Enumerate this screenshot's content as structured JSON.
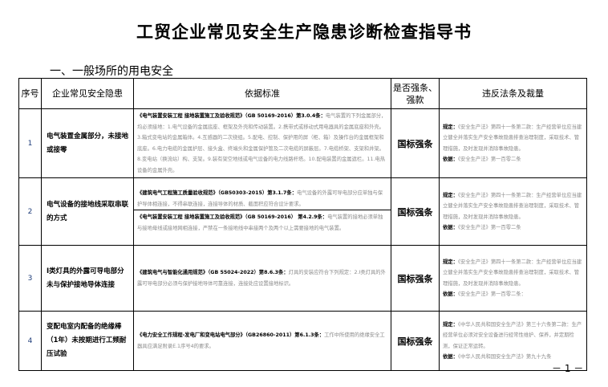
{
  "title": "工贸企业常见安全生产隐患诊断检查指导书",
  "section": "一、一般场所的用电安全",
  "headers": {
    "seq": "序号",
    "hazard": "企业常见安全隐患",
    "basis": "依据标准",
    "strong": "是否强条、强款",
    "law": "违反法条及裁量"
  },
  "rows": [
    {
      "seq": "1",
      "hazard": "电气装置金属部分，未接地或接零",
      "basis": [
        {
          "ref": "《电气装置安装工程 接地装置施工及验收规范》（GB 50169-2016）第3.0.4条：",
          "text": "电气装置的下列金属部分，均必须接地：1.电气设备的金属底座、框架及外壳和传动装置。2.携带式或移动式用电器具的金属底座和外壳。3.箱式变电站的金属箱体。4.互感器的二次绕组。5.配电、控制、保护用的屏（柜、箱）及操作台的金属框架和底座。6.电力电缆的金属护层、接头盒、终端头和金属保护管及二次电缆的屏蔽层。7.电缆桥架、支架和井架。8.变电站（换流站）构、支架。9.装有架空地线或电气设备的电力线路杆塔。10.配电装置的金属遮栏。11.电热设备的金属外壳。"
        }
      ],
      "strong": "国标强条",
      "law": {
        "rule_label": "规定：",
        "rule": "《安全生产法》第四十一条第二款：生产经营单位应当建立健全并落实生产安全事故隐患排查治理制度，采取技术、管理措施，及时发现并消除事故隐患。",
        "basis_label": "依据：",
        "basis": "《安全生产法》第一百零二条"
      }
    },
    {
      "seq": "2",
      "hazard": "电气设备的接地线采取串联的方式",
      "basis": [
        {
          "ref": "《建筑电气工程施工质量验收规范》（GB50303-2015）第3.1.7条：",
          "text": "电气设备的外露可导电部分应单独与保护导体相连接，不得串联连接，连接导体的材质、截面积应符合设计要求。"
        },
        {
          "ref": "《电气装置安装工程 接地装置施工及验收规范》（GB 50169-2016） 第4.2.9条：",
          "text": "电气装置的接地必须单独与接地母线或接地网相连接，严禁在一条接地线中串接两个及两个以上需要接地的电气装置。"
        }
      ],
      "strong": "国标强条",
      "law": {
        "rule_label": "规定：",
        "rule": "《安全生产法》第四十一条第二款：生产经营单位应当建立健全并落实生产安全事故隐患排查治理制度，采取技术、管理措施，及时发现并消除事故隐患。",
        "basis_label": "依据：",
        "basis": "《安全生产法》第一百零二条"
      }
    },
    {
      "seq": "3",
      "hazard": "I类灯具的外露可导电部分未与保护接地导体连接",
      "basis": [
        {
          "ref": "《建筑电气与智能化通用规范》（GB 55024-2022）第8.6.3条：",
          "text": "灯具的安装应符合下列规定：2.I类灯具的外露可导电部分必须与保护接地导体可靠连接，连接处应设置接地标识。"
        }
      ],
      "strong": "国标强条",
      "law": {
        "rule_label": "规定：",
        "rule": "《安全生产法》第四十一条第二款：生产经营单位应当建立健全并落实生产安全事故隐患排查治理制度，采取技术、管理措施，及时发现并消除事故隐患。",
        "basis_label": "依据：",
        "basis": "《安全生产法》第一百零二条："
      }
    },
    {
      "seq": "4",
      "hazard": "变配电室内配备的绝缘棒（1年）未按期进行工频耐压试验",
      "basis": [
        {
          "ref": "《电力安全工作规程-发电厂和变电站电气部分》（GB26860-2011）第6.1.3条：",
          "text": "工作中所使用的绝缘安全工器具应满足附录E.1序号4的要求。"
        }
      ],
      "strong": "国标强条",
      "law": {
        "rule_label": "规定：",
        "rule": "《中华人民共和国安全生产法》第三十六条第二款：生产经营单位必须对安全设备进行经常性维护、保养，并定期检测，保证正常运转。",
        "basis_label": "依据：",
        "basis": "《中华人民共和国安全生产法》第九十九条"
      }
    }
  ],
  "page_number": "－ 1 －"
}
